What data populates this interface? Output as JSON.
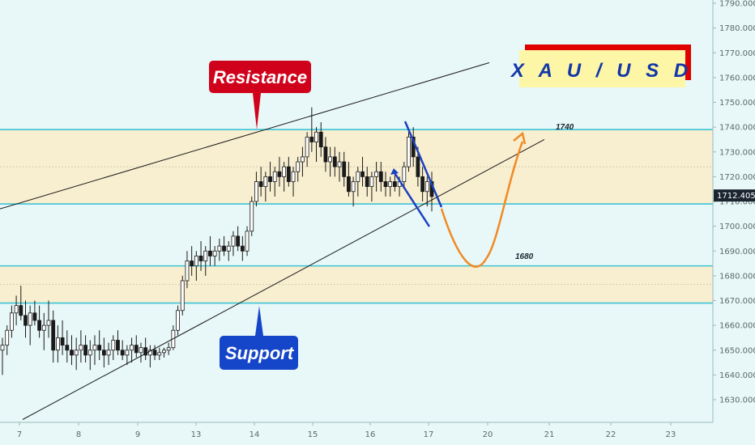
{
  "symbol": "X A U / U S D",
  "colors": {
    "background": "#e8f7f7",
    "zone_fill": "#f8eed0",
    "level_line": "#3cc4d6",
    "bull": "#1a1a1a",
    "bear": "#1a1a1a",
    "resistance": "#d0021b",
    "support": "#1545c8",
    "channel": "#1b40c0",
    "projection": "#f08a24",
    "trendline": "#1a1a1a",
    "price_tag": "#1b2530"
  },
  "annotations": {
    "resistance_label": "Resistance",
    "support_label": "Support",
    "level_upper": "1740",
    "level_lower": "1680"
  },
  "price_tag": "1712.405",
  "chart_data": {
    "type": "candlestick",
    "y_axis": {
      "range": [
        1620,
        1795
      ],
      "ticks": [
        "1630.000",
        "1640.000",
        "1650.000",
        "1660.000",
        "1670.000",
        "1680.000",
        "1690.000",
        "1700.000",
        "1710.000",
        "1720.000",
        "1730.000",
        "1740.000",
        "1750.000",
        "1760.000",
        "1770.000",
        "1780.000",
        "1790.000"
      ]
    },
    "x_axis": {
      "ticks": [
        "7",
        "8",
        "9",
        "13",
        "14",
        "15",
        "16",
        "17",
        "20",
        "21",
        "22",
        "23"
      ]
    },
    "zones": [
      {
        "from": 1709,
        "to": 1739
      },
      {
        "from": 1669,
        "to": 1684
      }
    ],
    "horizontal_levels": [
      1739,
      1709,
      1684,
      1669
    ],
    "last_price": 1712.405,
    "candles": [
      [
        1650,
        1655,
        1640,
        1652
      ],
      [
        1652,
        1660,
        1648,
        1658
      ],
      [
        1658,
        1668,
        1655,
        1665
      ],
      [
        1665,
        1672,
        1660,
        1668
      ],
      [
        1668,
        1676,
        1662,
        1664
      ],
      [
        1664,
        1670,
        1655,
        1660
      ],
      [
        1660,
        1668,
        1652,
        1665
      ],
      [
        1665,
        1670,
        1660,
        1662
      ],
      [
        1662,
        1668,
        1655,
        1658
      ],
      [
        1658,
        1665,
        1650,
        1660
      ],
      [
        1660,
        1670,
        1655,
        1662
      ],
      [
        1662,
        1666,
        1645,
        1650
      ],
      [
        1650,
        1660,
        1645,
        1655
      ],
      [
        1655,
        1662,
        1648,
        1652
      ],
      [
        1652,
        1658,
        1645,
        1650
      ],
      [
        1650,
        1656,
        1644,
        1648
      ],
      [
        1648,
        1655,
        1642,
        1650
      ],
      [
        1650,
        1658,
        1645,
        1652
      ],
      [
        1652,
        1656,
        1645,
        1648
      ],
      [
        1648,
        1654,
        1642,
        1650
      ],
      [
        1650,
        1656,
        1644,
        1652
      ],
      [
        1652,
        1658,
        1646,
        1650
      ],
      [
        1650,
        1655,
        1643,
        1648
      ],
      [
        1648,
        1653,
        1644,
        1650
      ],
      [
        1650,
        1656,
        1646,
        1654
      ],
      [
        1654,
        1658,
        1648,
        1650
      ],
      [
        1650,
        1654,
        1646,
        1648
      ],
      [
        1648,
        1652,
        1644,
        1650
      ],
      [
        1650,
        1655,
        1645,
        1652
      ],
      [
        1652,
        1656,
        1647,
        1649
      ],
      [
        1649,
        1653,
        1645,
        1651
      ],
      [
        1651,
        1655,
        1646,
        1648
      ],
      [
        1648,
        1652,
        1643,
        1650
      ],
      [
        1650,
        1652,
        1646,
        1648
      ],
      [
        1648,
        1651,
        1646,
        1649
      ],
      [
        1649,
        1651,
        1647,
        1650
      ],
      [
        1650,
        1653,
        1648,
        1651
      ],
      [
        1651,
        1660,
        1650,
        1658
      ],
      [
        1658,
        1668,
        1656,
        1666
      ],
      [
        1666,
        1680,
        1664,
        1678
      ],
      [
        1678,
        1690,
        1675,
        1686
      ],
      [
        1686,
        1692,
        1680,
        1684
      ],
      [
        1684,
        1690,
        1678,
        1688
      ],
      [
        1688,
        1694,
        1682,
        1686
      ],
      [
        1686,
        1692,
        1680,
        1690
      ],
      [
        1690,
        1696,
        1684,
        1688
      ],
      [
        1688,
        1692,
        1684,
        1690
      ],
      [
        1690,
        1695,
        1686,
        1692
      ],
      [
        1692,
        1696,
        1688,
        1690
      ],
      [
        1690,
        1694,
        1686,
        1692
      ],
      [
        1692,
        1698,
        1688,
        1696
      ],
      [
        1696,
        1700,
        1690,
        1692
      ],
      [
        1692,
        1696,
        1686,
        1690
      ],
      [
        1690,
        1700,
        1688,
        1698
      ],
      [
        1698,
        1712,
        1696,
        1710
      ],
      [
        1710,
        1722,
        1708,
        1718
      ],
      [
        1718,
        1724,
        1712,
        1716
      ],
      [
        1716,
        1722,
        1710,
        1720
      ],
      [
        1720,
        1726,
        1714,
        1718
      ],
      [
        1718,
        1724,
        1712,
        1722
      ],
      [
        1722,
        1728,
        1716,
        1720
      ],
      [
        1720,
        1726,
        1714,
        1724
      ],
      [
        1724,
        1728,
        1716,
        1718
      ],
      [
        1718,
        1724,
        1712,
        1722
      ],
      [
        1722,
        1728,
        1718,
        1726
      ],
      [
        1726,
        1732,
        1720,
        1728
      ],
      [
        1728,
        1738,
        1724,
        1736
      ],
      [
        1736,
        1748,
        1730,
        1734
      ],
      [
        1734,
        1740,
        1726,
        1738
      ],
      [
        1738,
        1742,
        1728,
        1732
      ],
      [
        1732,
        1736,
        1722,
        1726
      ],
      [
        1726,
        1732,
        1720,
        1728
      ],
      [
        1728,
        1732,
        1720,
        1724
      ],
      [
        1724,
        1730,
        1718,
        1726
      ],
      [
        1726,
        1730,
        1716,
        1720
      ],
      [
        1720,
        1726,
        1712,
        1714
      ],
      [
        1714,
        1720,
        1708,
        1718
      ],
      [
        1718,
        1724,
        1712,
        1722
      ],
      [
        1722,
        1728,
        1716,
        1720
      ],
      [
        1720,
        1724,
        1712,
        1716
      ],
      [
        1716,
        1722,
        1710,
        1720
      ],
      [
        1720,
        1726,
        1714,
        1722
      ],
      [
        1722,
        1726,
        1714,
        1718
      ],
      [
        1718,
        1722,
        1712,
        1716
      ],
      [
        1716,
        1720,
        1712,
        1718
      ],
      [
        1718,
        1722,
        1714,
        1716
      ],
      [
        1716,
        1720,
        1712,
        1718
      ],
      [
        1718,
        1726,
        1716,
        1724
      ],
      [
        1724,
        1738,
        1722,
        1736
      ],
      [
        1736,
        1740,
        1724,
        1728
      ],
      [
        1728,
        1732,
        1716,
        1720
      ],
      [
        1720,
        1724,
        1710,
        1714
      ],
      [
        1714,
        1720,
        1708,
        1718
      ],
      [
        1718,
        1722,
        1706,
        1712
      ]
    ],
    "trendlines": [
      {
        "name": "resistance-trendline",
        "from": [
          0.0,
          1707
        ],
        "to": [
          0.648,
          1766
        ]
      },
      {
        "name": "support-trendline",
        "from": [
          0.03,
          1622
        ],
        "to": [
          0.721,
          1735
        ]
      }
    ],
    "projection_path": "down to 1685 then up to 1740"
  }
}
